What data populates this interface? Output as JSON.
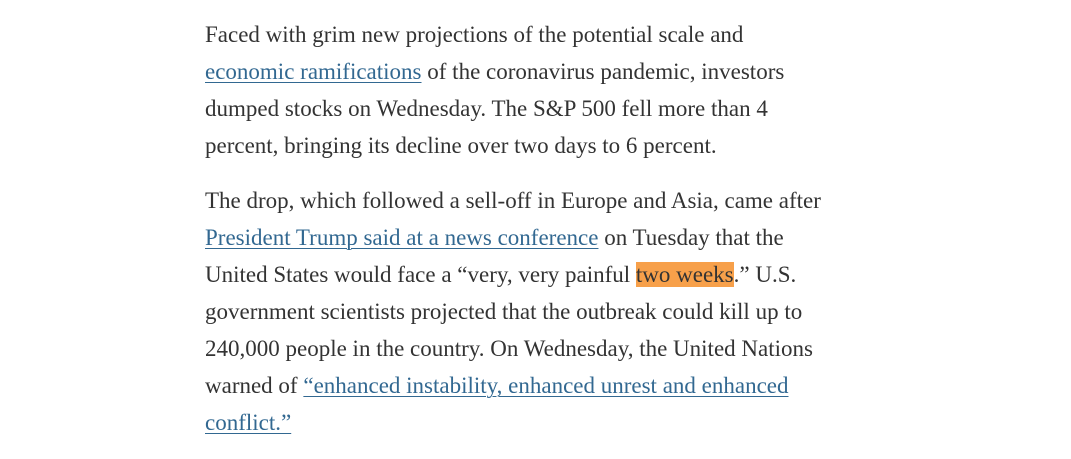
{
  "paragraphs": [
    {
      "lines": [
        [
          "Faced with grim new projections of the potential scale and"
        ],
        [
          {
            "link": "economic ramifications"
          },
          " of the coronavirus pandemic, investors"
        ],
        [
          "dumped stocks on Wednesday. The S&P 500 fell more than 4"
        ],
        [
          "percent, bringing its decline over two days to 6 percent."
        ]
      ]
    },
    {
      "lines": [
        [
          "The drop, which followed a sell-off in Europe and Asia, came after"
        ],
        [
          {
            "link": "President Trump said at a news conference"
          },
          " on Tuesday that the"
        ],
        [
          "United States would face a “very, very painful ",
          {
            "highlight": "two weeks"
          },
          ".” U.S."
        ],
        [
          "government scientists projected that the outbreak could kill up to"
        ],
        [
          "240,000 people in the country. On Wednesday, the United Nations"
        ],
        [
          "warned of ",
          {
            "link": "“enhanced instability, enhanced unrest and enhanced"
          }
        ],
        [
          {
            "link": "conflict.”"
          }
        ]
      ]
    }
  ]
}
